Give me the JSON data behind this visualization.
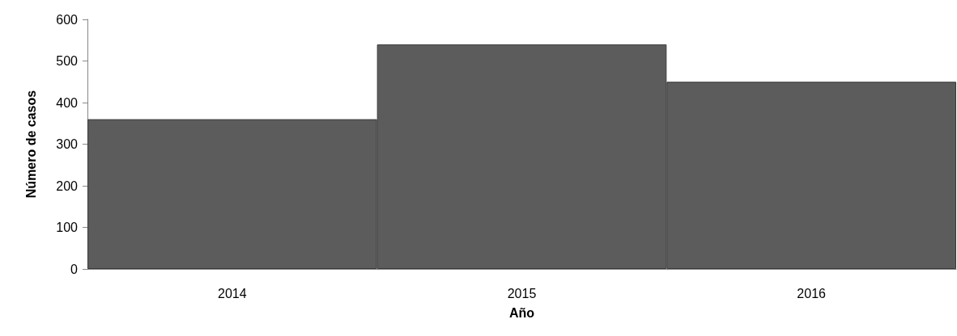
{
  "chart_data": {
    "type": "bar",
    "xlabel": "Año",
    "ylabel": "Número de casos",
    "categories": [
      "2014",
      "2015",
      "2016"
    ],
    "values": [
      360,
      540,
      450
    ],
    "color": "#5c5c5c",
    "ylim": [
      0,
      600
    ],
    "yticks": [
      0,
      100,
      200,
      300,
      400,
      500,
      600
    ],
    "grid": false
  }
}
